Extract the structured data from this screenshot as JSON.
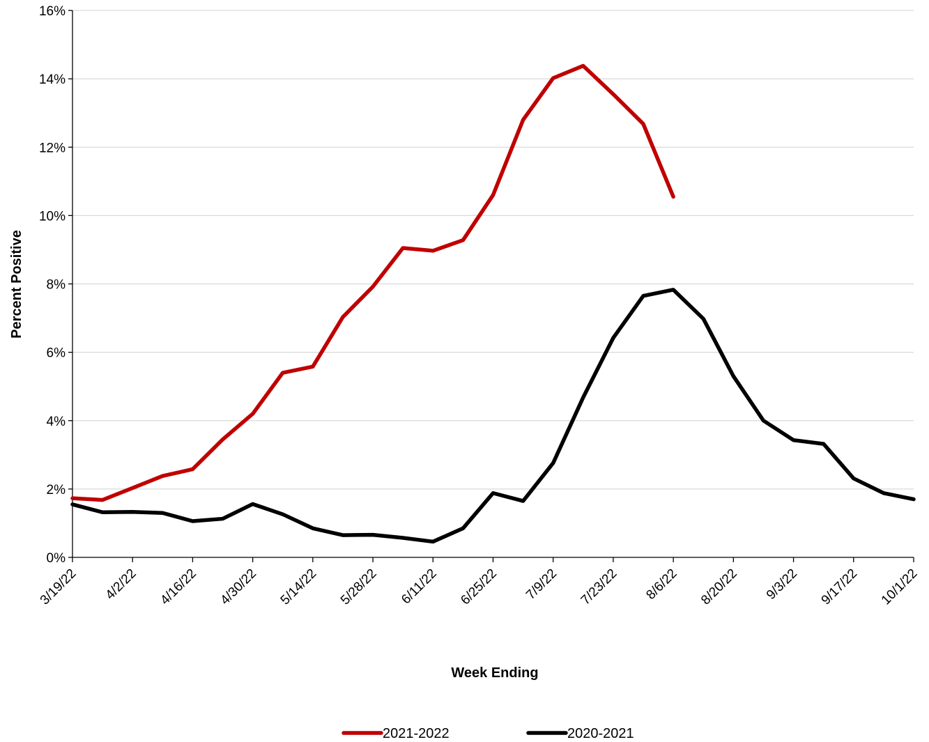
{
  "chart_data": {
    "type": "line",
    "xlabel": "Week Ending",
    "ylabel": "Percent Positive",
    "x": [
      "3/19/22",
      "3/26/22",
      "4/2/22",
      "4/9/22",
      "4/16/22",
      "4/23/22",
      "4/30/22",
      "5/7/22",
      "5/14/22",
      "5/21/22",
      "5/28/22",
      "6/4/22",
      "6/11/22",
      "6/18/22",
      "6/25/22",
      "7/2/22",
      "7/9/22",
      "7/16/22",
      "7/23/22",
      "7/30/22",
      "8/6/22",
      "8/13/22",
      "8/20/22",
      "8/27/22",
      "9/3/22",
      "9/10/22",
      "9/17/22",
      "9/24/22",
      "10/1/22"
    ],
    "x_tick_labels": [
      "3/19/22",
      "4/2/22",
      "4/16/22",
      "4/30/22",
      "5/14/22",
      "5/28/22",
      "6/11/22",
      "6/25/22",
      "7/9/22",
      "7/23/22",
      "8/6/22",
      "8/20/22",
      "9/3/22",
      "9/17/22",
      "10/1/22"
    ],
    "ylim": [
      0,
      16
    ],
    "y_ticks": [
      0,
      2,
      4,
      6,
      8,
      10,
      12,
      14,
      16
    ],
    "y_tick_labels": [
      "0%",
      "2%",
      "4%",
      "6%",
      "8%",
      "10%",
      "12%",
      "14%",
      "16%"
    ],
    "grid": "horizontal",
    "legend_position": "bottom",
    "series": [
      {
        "name": "2021-2022",
        "color": "#C00000",
        "values": [
          1.73,
          1.68,
          2.03,
          2.38,
          2.58,
          3.45,
          4.2,
          5.4,
          5.58,
          7.03,
          7.92,
          9.05,
          8.97,
          9.28,
          10.6,
          12.8,
          14.02,
          14.38,
          13.55,
          12.68,
          10.55,
          null,
          null,
          null,
          null,
          null,
          null,
          null,
          null
        ]
      },
      {
        "name": "2020-2021",
        "color": "#000000",
        "values": [
          1.55,
          1.32,
          1.33,
          1.3,
          1.06,
          1.13,
          1.56,
          1.26,
          0.85,
          0.65,
          0.66,
          0.57,
          0.46,
          0.85,
          1.88,
          1.65,
          2.76,
          4.68,
          6.42,
          7.65,
          7.83,
          6.98,
          5.3,
          4.0,
          3.43,
          3.32,
          2.31,
          1.88,
          1.7
        ]
      }
    ]
  }
}
